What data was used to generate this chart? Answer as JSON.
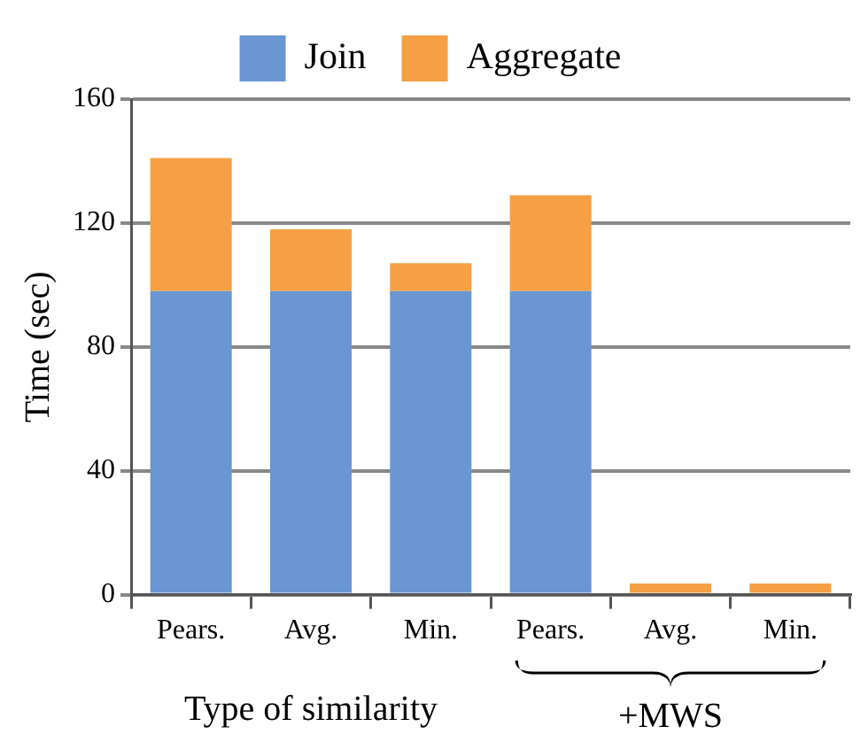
{
  "chart_data": {
    "type": "bar",
    "stacked": true,
    "categories": [
      "Pears.",
      "Avg.",
      "Min.",
      "Pears.",
      "Avg.",
      "Min."
    ],
    "series": [
      {
        "name": "Join",
        "color": "#6a96d2",
        "values": [
          98,
          98,
          98,
          98,
          0,
          0
        ]
      },
      {
        "name": "Aggregate",
        "color": "#f5a044",
        "values": [
          43,
          20,
          9,
          31,
          3.6,
          3.6
        ]
      }
    ],
    "xlabel": "Type of similarity",
    "ylabel": "Time (sec)",
    "annotations": [
      "+MWS"
    ],
    "ylim": [
      0,
      160
    ],
    "yticks": [
      0,
      40,
      80,
      120,
      160
    ],
    "grid": "y",
    "legend": "top"
  }
}
